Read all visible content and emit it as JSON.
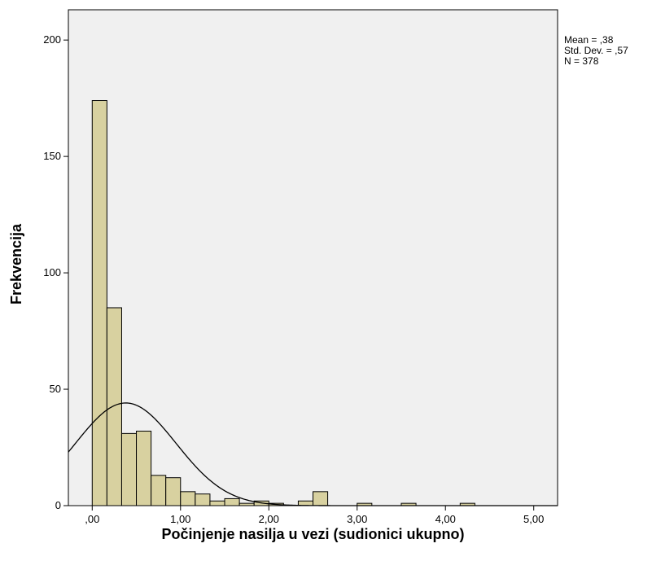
{
  "chart_data": {
    "type": "bar",
    "subtype": "histogram",
    "xlabel": "Počinjenje nasilja u vezi (sudionici ukupno)",
    "ylabel": "Frekvencija",
    "xlim": [
      -0.27,
      5.27
    ],
    "ylim": [
      0,
      213
    ],
    "x_ticks": [
      {
        "value": 0,
        "label": ",00"
      },
      {
        "value": 1,
        "label": "1,00"
      },
      {
        "value": 2,
        "label": "2,00"
      },
      {
        "value": 3,
        "label": "3,00"
      },
      {
        "value": 4,
        "label": "4,00"
      },
      {
        "value": 5,
        "label": "5,00"
      }
    ],
    "y_ticks": [
      {
        "value": 0,
        "label": "0"
      },
      {
        "value": 50,
        "label": "50"
      },
      {
        "value": 100,
        "label": "100"
      },
      {
        "value": 150,
        "label": "150"
      },
      {
        "value": 200,
        "label": "200"
      }
    ],
    "bin_width": 0.1667,
    "bins": [
      {
        "x0": 0.0,
        "count": 174
      },
      {
        "x0": 0.1667,
        "count": 85
      },
      {
        "x0": 0.3333,
        "count": 31
      },
      {
        "x0": 0.5,
        "count": 32
      },
      {
        "x0": 0.6667,
        "count": 13
      },
      {
        "x0": 0.8333,
        "count": 12
      },
      {
        "x0": 1.0,
        "count": 6
      },
      {
        "x0": 1.1667,
        "count": 5
      },
      {
        "x0": 1.3333,
        "count": 2
      },
      {
        "x0": 1.5,
        "count": 3
      },
      {
        "x0": 1.6667,
        "count": 1
      },
      {
        "x0": 1.8333,
        "count": 2
      },
      {
        "x0": 2.0,
        "count": 1
      },
      {
        "x0": 2.3333,
        "count": 2
      },
      {
        "x0": 2.5,
        "count": 6
      },
      {
        "x0": 3.0,
        "count": 1
      },
      {
        "x0": 3.5,
        "count": 1
      },
      {
        "x0": 4.1667,
        "count": 1
      }
    ],
    "normal_curve": {
      "mean": 0.38,
      "sd": 0.57,
      "n": 378
    },
    "grid": false,
    "stats": {
      "mean_label": "Mean = ,38",
      "sd_label": "Std. Dev. = ,57",
      "n_label": "N = 378"
    },
    "colors": {
      "plot_background": "#f0f0f0",
      "bar_fill": "#d8d1a0",
      "bar_stroke": "#000000",
      "curve": "#000000"
    }
  }
}
